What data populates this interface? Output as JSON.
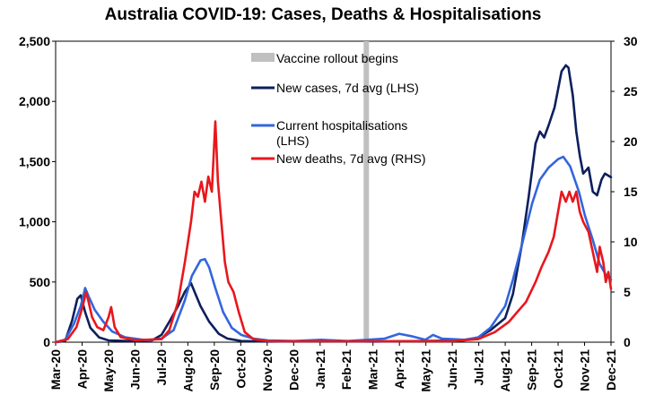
{
  "chart_data": {
    "type": "line",
    "title": "Australia COVID-19: Cases, Deaths & Hospitalisations",
    "xlabel": "",
    "ylabel_left": "",
    "ylabel_right": "",
    "ylim_left": [
      0,
      2500
    ],
    "ylim_right": [
      0,
      30
    ],
    "yticks_left": [
      "0",
      "500",
      "1,000",
      "1,500",
      "2,000",
      "2,500"
    ],
    "yticks_right": [
      "0",
      "5",
      "10",
      "15",
      "20",
      "25",
      "30"
    ],
    "x_range": [
      "2020-03-01",
      "2021-12-01"
    ],
    "xticks": [
      "Mar-20",
      "Apr-20",
      "May-20",
      "Jun-20",
      "Jul-20",
      "Aug-20",
      "Sep-20",
      "Oct-20",
      "Nov-20",
      "Dec-20",
      "Jan-21",
      "Feb-21",
      "Mar-21",
      "Apr-21",
      "May-21",
      "Jun-21",
      "Jul-21",
      "Aug-21",
      "Sep-21",
      "Oct-21",
      "Nov-21",
      "Dec-21"
    ],
    "grid": false,
    "legend_placement": "top-center",
    "annotation": {
      "label": "Vaccine rollout begins",
      "date": "2021-02-22",
      "color": "#c0c0c0"
    },
    "series": [
      {
        "name": "New cases, 7d avg (LHS)",
        "axis": "left",
        "color": "#0d1f5c",
        "points": [
          [
            "2020-03-01",
            0
          ],
          [
            "2020-03-12",
            10
          ],
          [
            "2020-03-20",
            180
          ],
          [
            "2020-03-26",
            360
          ],
          [
            "2020-03-30",
            390
          ],
          [
            "2020-04-04",
            250
          ],
          [
            "2020-04-10",
            120
          ],
          [
            "2020-04-20",
            40
          ],
          [
            "2020-05-01",
            15
          ],
          [
            "2020-06-01",
            8
          ],
          [
            "2020-06-20",
            15
          ],
          [
            "2020-07-01",
            60
          ],
          [
            "2020-07-10",
            170
          ],
          [
            "2020-07-20",
            300
          ],
          [
            "2020-07-28",
            420
          ],
          [
            "2020-08-04",
            490
          ],
          [
            "2020-08-08",
            420
          ],
          [
            "2020-08-15",
            300
          ],
          [
            "2020-08-25",
            170
          ],
          [
            "2020-09-05",
            70
          ],
          [
            "2020-09-15",
            30
          ],
          [
            "2020-10-01",
            10
          ],
          [
            "2020-11-01",
            5
          ],
          [
            "2021-01-01",
            10
          ],
          [
            "2021-03-01",
            5
          ],
          [
            "2021-05-01",
            10
          ],
          [
            "2021-06-15",
            15
          ],
          [
            "2021-07-01",
            40
          ],
          [
            "2021-07-15",
            100
          ],
          [
            "2021-08-01",
            200
          ],
          [
            "2021-08-10",
            400
          ],
          [
            "2021-08-20",
            800
          ],
          [
            "2021-08-28",
            1200
          ],
          [
            "2021-09-05",
            1650
          ],
          [
            "2021-09-10",
            1750
          ],
          [
            "2021-09-15",
            1700
          ],
          [
            "2021-09-20",
            1800
          ],
          [
            "2021-09-27",
            1950
          ],
          [
            "2021-10-01",
            2100
          ],
          [
            "2021-10-05",
            2250
          ],
          [
            "2021-10-10",
            2300
          ],
          [
            "2021-10-13",
            2280
          ],
          [
            "2021-10-18",
            2050
          ],
          [
            "2021-10-22",
            1750
          ],
          [
            "2021-10-26",
            1550
          ],
          [
            "2021-10-30",
            1400
          ],
          [
            "2021-11-05",
            1450
          ],
          [
            "2021-11-10",
            1250
          ],
          [
            "2021-11-15",
            1220
          ],
          [
            "2021-11-20",
            1350
          ],
          [
            "2021-11-24",
            1400
          ],
          [
            "2021-12-01",
            1370
          ]
        ]
      },
      {
        "name": "Current hospitalisations (LHS)",
        "axis": "left",
        "color": "#3366dd",
        "points": [
          [
            "2020-03-01",
            0
          ],
          [
            "2020-03-12",
            20
          ],
          [
            "2020-03-22",
            150
          ],
          [
            "2020-03-30",
            300
          ],
          [
            "2020-04-04",
            450
          ],
          [
            "2020-04-08",
            380
          ],
          [
            "2020-04-15",
            270
          ],
          [
            "2020-04-25",
            170
          ],
          [
            "2020-05-05",
            90
          ],
          [
            "2020-05-20",
            40
          ],
          [
            "2020-06-15",
            15
          ],
          [
            "2020-07-01",
            30
          ],
          [
            "2020-07-15",
            100
          ],
          [
            "2020-07-28",
            350
          ],
          [
            "2020-08-05",
            550
          ],
          [
            "2020-08-15",
            680
          ],
          [
            "2020-08-20",
            690
          ],
          [
            "2020-08-25",
            620
          ],
          [
            "2020-09-01",
            450
          ],
          [
            "2020-09-10",
            250
          ],
          [
            "2020-09-20",
            120
          ],
          [
            "2020-10-01",
            60
          ],
          [
            "2020-10-15",
            30
          ],
          [
            "2020-11-01",
            15
          ],
          [
            "2020-12-01",
            10
          ],
          [
            "2021-01-01",
            20
          ],
          [
            "2021-02-01",
            10
          ],
          [
            "2021-03-15",
            30
          ],
          [
            "2021-04-01",
            70
          ],
          [
            "2021-04-15",
            50
          ],
          [
            "2021-05-01",
            20
          ],
          [
            "2021-05-10",
            60
          ],
          [
            "2021-05-20",
            30
          ],
          [
            "2021-06-15",
            20
          ],
          [
            "2021-07-01",
            40
          ],
          [
            "2021-07-15",
            120
          ],
          [
            "2021-08-01",
            300
          ],
          [
            "2021-08-10",
            520
          ],
          [
            "2021-08-20",
            800
          ],
          [
            "2021-09-01",
            1150
          ],
          [
            "2021-09-10",
            1350
          ],
          [
            "2021-09-20",
            1450
          ],
          [
            "2021-10-01",
            1520
          ],
          [
            "2021-10-07",
            1540
          ],
          [
            "2021-10-15",
            1460
          ],
          [
            "2021-10-25",
            1250
          ],
          [
            "2021-11-01",
            1050
          ],
          [
            "2021-11-10",
            850
          ],
          [
            "2021-11-18",
            650
          ],
          [
            "2021-11-25",
            560
          ],
          [
            "2021-12-01",
            520
          ]
        ]
      },
      {
        "name": "New deaths, 7d avg (RHS)",
        "axis": "right",
        "color": "#e8171c",
        "points": [
          [
            "2020-03-01",
            0
          ],
          [
            "2020-03-15",
            0.3
          ],
          [
            "2020-03-25",
            1.5
          ],
          [
            "2020-04-01",
            3.5
          ],
          [
            "2020-04-05",
            5
          ],
          [
            "2020-04-08",
            4
          ],
          [
            "2020-04-12",
            2.5
          ],
          [
            "2020-04-18",
            1.5
          ],
          [
            "2020-04-25",
            1.2
          ],
          [
            "2020-05-01",
            2.5
          ],
          [
            "2020-05-04",
            3.5
          ],
          [
            "2020-05-08",
            1.5
          ],
          [
            "2020-05-15",
            0.5
          ],
          [
            "2020-06-01",
            0.2
          ],
          [
            "2020-07-01",
            0.3
          ],
          [
            "2020-07-10",
            1.2
          ],
          [
            "2020-07-20",
            4
          ],
          [
            "2020-07-28",
            8
          ],
          [
            "2020-08-04",
            12
          ],
          [
            "2020-08-08",
            15
          ],
          [
            "2020-08-12",
            14.5
          ],
          [
            "2020-08-16",
            16
          ],
          [
            "2020-08-20",
            14
          ],
          [
            "2020-08-24",
            16.5
          ],
          [
            "2020-08-28",
            15
          ],
          [
            "2020-09-01",
            22
          ],
          [
            "2020-09-04",
            16
          ],
          [
            "2020-09-08",
            12
          ],
          [
            "2020-09-12",
            8
          ],
          [
            "2020-09-16",
            6
          ],
          [
            "2020-09-22",
            5
          ],
          [
            "2020-09-28",
            3
          ],
          [
            "2020-10-05",
            1
          ],
          [
            "2020-10-15",
            0.3
          ],
          [
            "2020-11-01",
            0.1
          ],
          [
            "2021-01-01",
            0.1
          ],
          [
            "2021-03-01",
            0.1
          ],
          [
            "2021-06-01",
            0.1
          ],
          [
            "2021-07-01",
            0.3
          ],
          [
            "2021-07-20",
            1
          ],
          [
            "2021-08-05",
            2
          ],
          [
            "2021-08-15",
            3
          ],
          [
            "2021-08-25",
            4
          ],
          [
            "2021-09-05",
            6
          ],
          [
            "2021-09-12",
            7.5
          ],
          [
            "2021-09-20",
            9
          ],
          [
            "2021-09-26",
            10.5
          ],
          [
            "2021-10-01",
            13
          ],
          [
            "2021-10-05",
            15
          ],
          [
            "2021-10-10",
            14
          ],
          [
            "2021-10-14",
            15
          ],
          [
            "2021-10-18",
            14
          ],
          [
            "2021-10-22",
            15
          ],
          [
            "2021-10-26",
            13
          ],
          [
            "2021-10-30",
            12
          ],
          [
            "2021-11-05",
            11
          ],
          [
            "2021-11-10",
            9
          ],
          [
            "2021-11-15",
            7
          ],
          [
            "2021-11-18",
            9.5
          ],
          [
            "2021-11-22",
            8
          ],
          [
            "2021-11-25",
            6
          ],
          [
            "2021-11-28",
            7
          ],
          [
            "2021-12-01",
            5.3
          ]
        ]
      }
    ]
  }
}
